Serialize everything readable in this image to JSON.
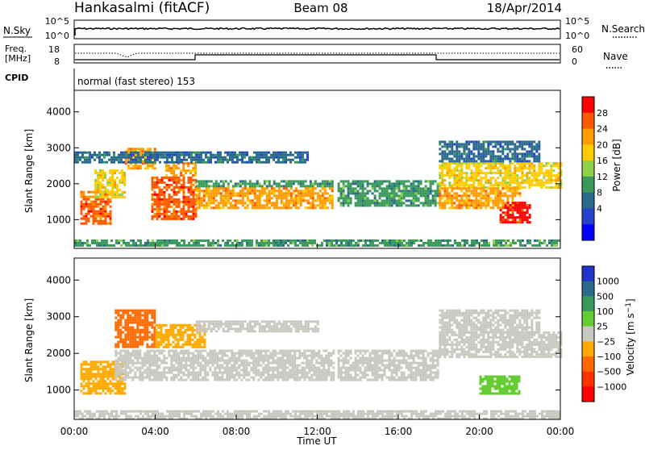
{
  "header": {
    "station": "Hankasalmi (fitACF)",
    "beam": "Beam 08",
    "date": "18/Apr/2014"
  },
  "nsky_panel": {
    "left_label": "N.Sky",
    "right_label": "N.Search",
    "left_ticks": [
      "10^5",
      "10^0"
    ],
    "right_ticks": [
      "10^5",
      "10^0"
    ]
  },
  "freq_panel": {
    "left_label_1": "Freq.",
    "left_label_2": "[MHz]",
    "right_label": "Nave",
    "left_ticks": [
      "18",
      "8"
    ],
    "right_ticks": [
      "60",
      "0"
    ]
  },
  "cpid": {
    "label": "CPID",
    "mode": "normal (fast stereo) 153"
  },
  "time_axis": {
    "label": "Time UT",
    "ticks": [
      "00:00",
      "04:00",
      "08:00",
      "12:00",
      "16:00",
      "20:00",
      "00:00"
    ]
  },
  "chart_data": [
    {
      "type": "heatmap",
      "name": "power",
      "ylabel": "Slant Range [km]",
      "ylim": [
        200,
        4600
      ],
      "yticks": [
        1000,
        2000,
        3000,
        4000
      ],
      "xlim_hours": [
        0,
        24
      ],
      "colorbar": {
        "label": "Power [dB]",
        "ticks": [
          "28",
          "24",
          "20",
          "16",
          "12",
          "8",
          "4"
        ],
        "colors": [
          "#ff0000",
          "#ff5a00",
          "#ff9a00",
          "#ffcc00",
          "#8ed14b",
          "#3a9a5a",
          "#2a6a8a",
          "#2244cc",
          "#0000ff"
        ]
      },
      "echo_regions": [
        {
          "t0": 0.3,
          "t1": 1.8,
          "r0": 900,
          "r1": 1800,
          "level": 24
        },
        {
          "t0": 1.0,
          "t1": 2.5,
          "r0": 1600,
          "r1": 2400,
          "level": 16
        },
        {
          "t0": 2.5,
          "t1": 4.0,
          "r0": 2400,
          "r1": 3000,
          "level": 20
        },
        {
          "t0": 3.8,
          "t1": 6.0,
          "r0": 1000,
          "r1": 2200,
          "level": 24
        },
        {
          "t0": 4.5,
          "t1": 6.0,
          "r0": 2200,
          "r1": 2600,
          "level": 20
        },
        {
          "t0": 6.0,
          "t1": 12.8,
          "r0": 1300,
          "r1": 1900,
          "level": 22
        },
        {
          "t0": 6.0,
          "t1": 12.8,
          "r0": 1900,
          "r1": 2100,
          "level": 12
        },
        {
          "t0": 0.0,
          "t1": 11.5,
          "r0": 2600,
          "r1": 2900,
          "level": 8
        },
        {
          "t0": 13.0,
          "t1": 18.0,
          "r0": 1400,
          "r1": 2100,
          "level": 12
        },
        {
          "t0": 18.0,
          "t1": 24.0,
          "r0": 1900,
          "r1": 2600,
          "level": 16
        },
        {
          "t0": 18.0,
          "t1": 22.0,
          "r0": 1300,
          "r1": 1900,
          "level": 22
        },
        {
          "t0": 21.0,
          "t1": 22.5,
          "r0": 900,
          "r1": 1500,
          "level": 28
        },
        {
          "t0": 18.0,
          "t1": 23.0,
          "r0": 2600,
          "r1": 3200,
          "level": 8
        },
        {
          "t0": 0.0,
          "t1": 24.0,
          "r0": 250,
          "r1": 450,
          "level": 10
        }
      ]
    },
    {
      "type": "heatmap",
      "name": "velocity",
      "ylabel": "Slant Range [km]",
      "ylim": [
        200,
        4600
      ],
      "yticks": [
        1000,
        2000,
        3000,
        4000
      ],
      "xlim_hours": [
        0,
        24
      ],
      "colorbar": {
        "label": "Velocity [m s^-1]",
        "ticks": [
          "1000",
          "500",
          "100",
          "25",
          "−25",
          "−100",
          "−500",
          "−1000"
        ],
        "colors": [
          "#2233cc",
          "#2a6a8a",
          "#3a9a5a",
          "#66cc33",
          "#c8c8c0",
          "#ffaa00",
          "#ff6a00",
          "#ff3300",
          "#ff0000"
        ]
      },
      "echo_regions": [
        {
          "t0": 0.3,
          "t1": 2.5,
          "r0": 900,
          "r1": 1800,
          "level": "-100"
        },
        {
          "t0": 2.0,
          "t1": 4.0,
          "r0": 2200,
          "r1": 3200,
          "level": "-500"
        },
        {
          "t0": 4.0,
          "t1": 6.5,
          "r0": 2200,
          "r1": 2800,
          "level": "-100"
        },
        {
          "t0": 2.0,
          "t1": 12.8,
          "r0": 1300,
          "r1": 2100,
          "level": "0"
        },
        {
          "t0": 6.0,
          "t1": 12.0,
          "r0": 2600,
          "r1": 2900,
          "level": "0"
        },
        {
          "t0": 13.0,
          "t1": 18.0,
          "r0": 1300,
          "r1": 2100,
          "level": "0"
        },
        {
          "t0": 18.0,
          "t1": 24.0,
          "r0": 1900,
          "r1": 2600,
          "level": "0"
        },
        {
          "t0": 20.0,
          "t1": 22.0,
          "r0": 900,
          "r1": 1400,
          "level": "100"
        },
        {
          "t0": 18.0,
          "t1": 23.0,
          "r0": 2600,
          "r1": 3200,
          "level": "0"
        },
        {
          "t0": 0.0,
          "t1": 24.0,
          "r0": 250,
          "r1": 450,
          "level": "0"
        }
      ]
    }
  ]
}
